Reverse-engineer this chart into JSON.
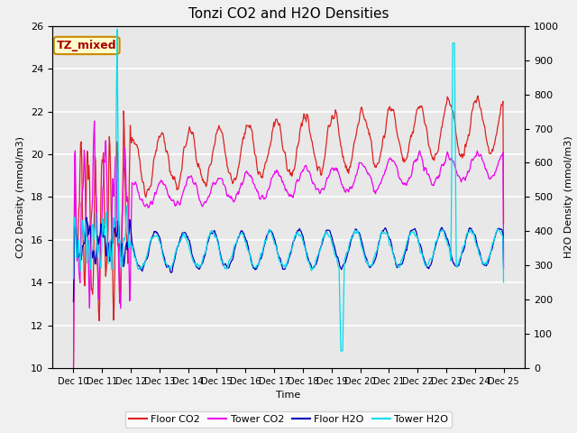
{
  "title": "Tonzi CO2 and H2O Densities",
  "xlabel": "Time",
  "ylabel_left": "CO2 Density (mmol/m3)",
  "ylabel_right": "H2O Density (mmol/m3)",
  "ylim_left": [
    10,
    26
  ],
  "ylim_right": [
    0,
    1000
  ],
  "xtick_labels": [
    "Dec 10",
    "Dec 11",
    "Dec 12",
    "Dec 13",
    "Dec 14",
    "Dec 15",
    "Dec 16",
    "Dec 17",
    "Dec 18",
    "Dec 19",
    "Dec 20",
    "Dec 21",
    "Dec 22",
    "Dec 23",
    "Dec 24",
    "Dec 25"
  ],
  "annotation_text": "TZ_mixed",
  "annotation_box_color": "#ffffcc",
  "annotation_box_edge": "#cc8800",
  "annotation_text_color": "#aa0000",
  "colors": {
    "floor_co2": "#dd2222",
    "tower_co2": "#ee00ee",
    "floor_h2o": "#0000bb",
    "tower_h2o": "#00ddee"
  },
  "legend_labels": [
    "Floor CO2",
    "Tower CO2",
    "Floor H2O",
    "Tower H2O"
  ],
  "background_color": "#e8e8e8",
  "grid_color": "#ffffff",
  "fig_facecolor": "#f0f0f0"
}
